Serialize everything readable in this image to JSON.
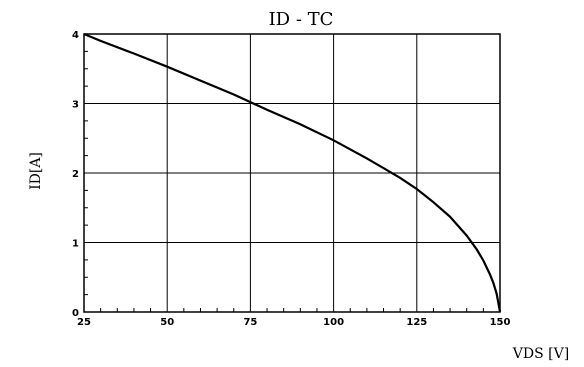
{
  "chart_data": {
    "type": "line",
    "title": "ID - TC",
    "ylabel": "ID[A]",
    "xlabel": "VDS [V]",
    "xlim": [
      25,
      150
    ],
    "ylim": [
      0,
      4
    ],
    "x_ticks": [
      "25",
      "50",
      "75",
      "100",
      "125",
      "150"
    ],
    "y_ticks": [
      "0",
      "1",
      "2",
      "3",
      "4"
    ],
    "grid": true,
    "series": [
      {
        "x": [
          25,
          30,
          40,
          50,
          60,
          70,
          75,
          80,
          90,
          100,
          110,
          120,
          125,
          130,
          135,
          140,
          143,
          145,
          147,
          148,
          149,
          150
        ],
        "y": [
          4.0,
          3.9,
          3.72,
          3.53,
          3.33,
          3.13,
          3.02,
          2.91,
          2.7,
          2.47,
          2.21,
          1.93,
          1.77,
          1.58,
          1.37,
          1.1,
          0.9,
          0.74,
          0.54,
          0.42,
          0.26,
          0.0
        ]
      }
    ]
  }
}
